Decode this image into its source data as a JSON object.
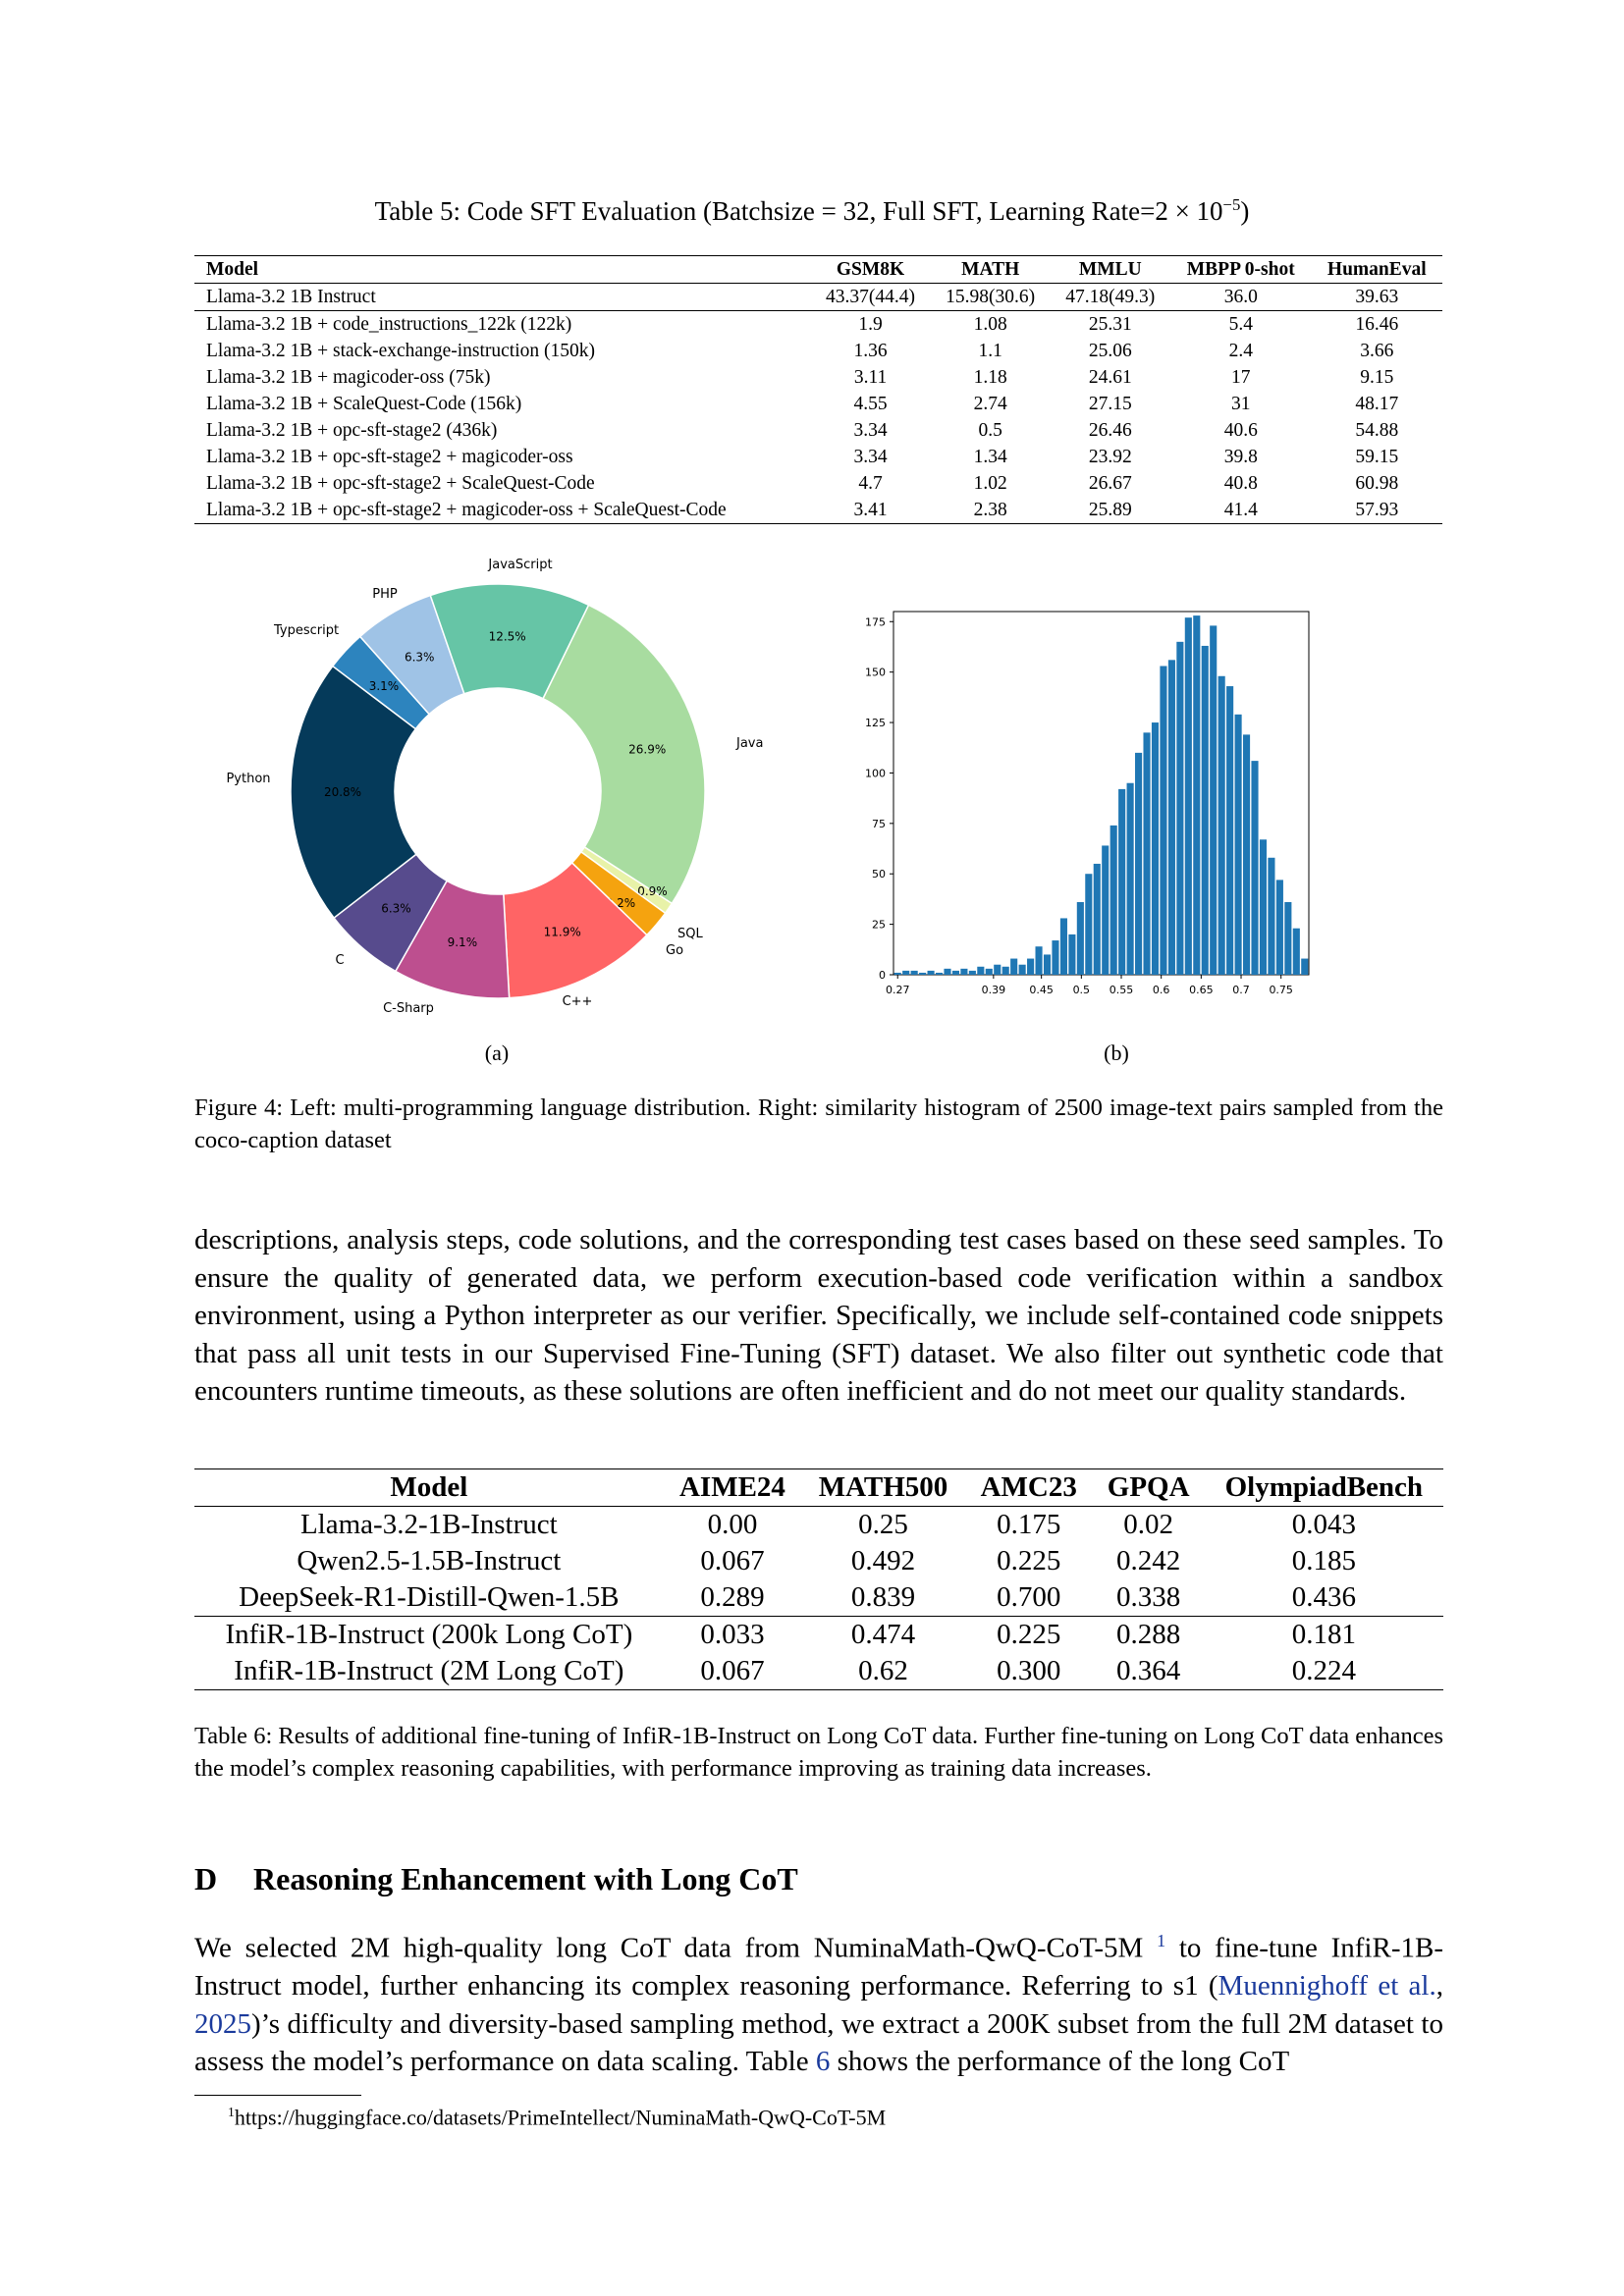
{
  "table5": {
    "caption_prefix": "Table 5: Code SFT Evaluation (Batchsize = 32, Full SFT, Learning Rate=2 × 10",
    "caption_exp": "−5",
    "caption_suffix": ")",
    "headers": [
      "Model",
      "GSM8K",
      "MATH",
      "MMLU",
      "MBPP 0-shot",
      "HumanEval"
    ],
    "rows": [
      [
        "Llama-3.2 1B Instruct",
        "43.37(44.4)",
        "15.98(30.6)",
        "47.18(49.3)",
        "36.0",
        "39.63"
      ],
      [
        "Llama-3.2 1B + code_instructions_122k (122k)",
        "1.9",
        "1.08",
        "25.31",
        "5.4",
        "16.46"
      ],
      [
        "Llama-3.2 1B + stack-exchange-instruction (150k)",
        "1.36",
        "1.1",
        "25.06",
        "2.4",
        "3.66"
      ],
      [
        "Llama-3.2 1B + magicoder-oss (75k)",
        "3.11",
        "1.18",
        "24.61",
        "17",
        "9.15"
      ],
      [
        "Llama-3.2 1B + ScaleQuest-Code (156k)",
        "4.55",
        "2.74",
        "27.15",
        "31",
        "48.17"
      ],
      [
        "Llama-3.2 1B + opc-sft-stage2 (436k)",
        "3.34",
        "0.5",
        "26.46",
        "40.6",
        "54.88"
      ],
      [
        "Llama-3.2 1B + opc-sft-stage2 + magicoder-oss",
        "3.34",
        "1.34",
        "23.92",
        "39.8",
        "59.15"
      ],
      [
        "Llama-3.2 1B + opc-sft-stage2 + ScaleQuest-Code",
        "4.7",
        "1.02",
        "26.67",
        "40.8",
        "60.98"
      ],
      [
        "Llama-3.2 1B + opc-sft-stage2 + magicoder-oss + ScaleQuest-Code",
        "3.41",
        "2.38",
        "25.89",
        "41.4",
        "57.93"
      ]
    ]
  },
  "figure4": {
    "sub_a": "(a)",
    "sub_b": "(b)",
    "caption": "Figure 4: Left: multi-programming language distribution. Right: similarity histogram of 2500 image-text pairs sampled from the coco-caption dataset"
  },
  "chart_data": [
    {
      "type": "pie",
      "donut": true,
      "categories": [
        "Java",
        "SQL",
        "Go",
        "C++",
        "C-Sharp",
        "C",
        "Python",
        "Typescript",
        "PHP",
        "JavaScript"
      ],
      "values": [
        26.9,
        0.9,
        2.2,
        11.9,
        9.1,
        6.3,
        20.8,
        3.1,
        6.3,
        12.5
      ],
      "labels": [
        "26.9%",
        "0.9%",
        "2.2%",
        "11.9%",
        "9.1%",
        "6.3%",
        "20.8%",
        "3.1%",
        "6.3%",
        "12.5%"
      ],
      "colors": [
        "#a8dca0",
        "#e8f2a8",
        "#f5a30f",
        "#ff6465",
        "#bd4f8f",
        "#574b8d",
        "#053a5a",
        "#2d84be",
        "#9fc3e6",
        "#66c5a6"
      ]
    },
    {
      "type": "bar",
      "x": [
        0.27,
        0.28,
        0.29,
        0.3,
        0.31,
        0.32,
        0.33,
        0.34,
        0.35,
        0.36,
        0.37,
        0.38,
        0.39,
        0.4,
        0.41,
        0.42,
        0.43,
        0.44,
        0.45,
        0.46,
        0.47,
        0.48,
        0.49,
        0.5,
        0.51,
        0.52,
        0.53,
        0.54,
        0.55,
        0.56,
        0.57,
        0.58,
        0.59,
        0.6,
        0.61,
        0.62,
        0.63,
        0.64,
        0.65,
        0.66,
        0.67,
        0.68,
        0.69,
        0.7,
        0.71,
        0.72,
        0.73,
        0.74,
        0.75,
        0.76
      ],
      "values": [
        1,
        2,
        2,
        1,
        2,
        1,
        3,
        2,
        3,
        2,
        4,
        3,
        5,
        4,
        8,
        5,
        8,
        14,
        10,
        17,
        28,
        20,
        36,
        50,
        55,
        64,
        74,
        92,
        95,
        110,
        120,
        125,
        153,
        156,
        165,
        177,
        178,
        163,
        173,
        148,
        143,
        129,
        119,
        106,
        67,
        58,
        47,
        36,
        23,
        8
      ],
      "xticks": [
        "0.27",
        "0.39",
        "0.45",
        "0.5",
        "0.55",
        "0.6",
        "0.65",
        "0.7",
        "0.75"
      ],
      "xtick_positions": [
        0.27,
        0.39,
        0.45,
        0.5,
        0.55,
        0.6,
        0.65,
        0.7,
        0.75
      ],
      "yticks": [
        "0",
        "25",
        "50",
        "75",
        "100",
        "125",
        "150",
        "175"
      ],
      "ylim": [
        0,
        180
      ],
      "xlim": [
        0.27,
        0.79
      ],
      "color": "#1f77b4"
    }
  ],
  "body1": "descriptions, analysis steps, code solutions, and the corresponding test cases based on these seed samples. To ensure the quality of generated data, we perform execution-based code verification within a sandbox environment, using a Python interpreter as our verifier. Specifically, we include self-contained code snippets that pass all unit tests in our Supervised Fine-Tuning (SFT) dataset. We also filter out synthetic code that encounters runtime timeouts, as these solutions are often inefficient and do not meet our quality standards.",
  "table6": {
    "headers": [
      "Model",
      "AIME24",
      "MATH500",
      "AMC23",
      "GPQA",
      "OlympiadBench"
    ],
    "rows": [
      [
        "Llama-3.2-1B-Instruct",
        "0.00",
        "0.25",
        "0.175",
        "0.02",
        "0.043"
      ],
      [
        "Qwen2.5-1.5B-Instruct",
        "0.067",
        "0.492",
        "0.225",
        "0.242",
        "0.185"
      ],
      [
        "DeepSeek-R1-Distill-Qwen-1.5B",
        "0.289",
        "0.839",
        "0.700",
        "0.338",
        "0.436"
      ],
      [
        "InfiR-1B-Instruct (200k Long CoT)",
        "0.033",
        "0.474",
        "0.225",
        "0.288",
        "0.181"
      ],
      [
        "InfiR-1B-Instruct (2M Long CoT)",
        "0.067",
        "0.62",
        "0.300",
        "0.364",
        "0.224"
      ]
    ],
    "caption": "Table 6: Results of additional fine-tuning of InfiR-1B-Instruct on Long CoT data. Further fine-tuning on Long CoT data enhances the model’s complex reasoning capabilities, with performance improving as training data increases."
  },
  "section": {
    "number": "D",
    "title": "Reasoning Enhancement with Long CoT"
  },
  "body2": {
    "p1": "We selected 2M high-quality long CoT data from NuminaMath-QwQ-CoT-5M ",
    "fn_mark": "1",
    "p2": " to fine-tune InfiR-1B-Instruct model, further enhancing its complex reasoning performance. Referring to s1 (",
    "cite_author": "Muennighoff et al.",
    "cite_sep": ", ",
    "cite_year": "2025",
    "p3": ")’s difficulty and diversity-based sampling method, we extract a 200K subset from the full 2M dataset to assess the model’s performance on data scaling. Table ",
    "table_ref": "6",
    "p4": " shows the performance of the long CoT"
  },
  "footnote": {
    "mark": "1",
    "text": "https://huggingface.co/datasets/PrimeIntellect/NuminaMath-QwQ-CoT-5M"
  }
}
